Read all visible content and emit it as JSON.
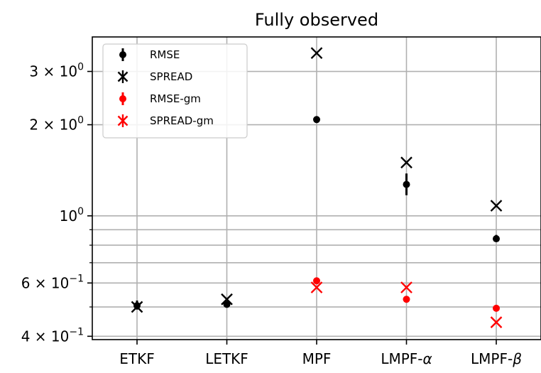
{
  "chart_data": {
    "type": "scatter",
    "title": "Fully observed",
    "xlabel": "",
    "ylabel": "",
    "y_scale": "log",
    "ylim": [
      0.39,
      3.9
    ],
    "grid": true,
    "legend_position": "top-left",
    "categories": [
      "ETKF",
      "LETKF",
      "MPF",
      "LMPF-α",
      "LMPF-β"
    ],
    "category_tex": [
      {
        "base": "ETKF",
        "symbol": ""
      },
      {
        "base": "LETKF",
        "symbol": ""
      },
      {
        "base": "MPF",
        "symbol": ""
      },
      {
        "base": "LMPF-",
        "symbol": "α"
      },
      {
        "base": "LMPF-",
        "symbol": "β"
      }
    ],
    "y_ticks": [
      {
        "value": 0.4,
        "mant": "4",
        "exp": "−1"
      },
      {
        "value": 0.6,
        "mant": "6",
        "exp": "−1"
      },
      {
        "value": 1.0,
        "mant": "",
        "exp": "0"
      },
      {
        "value": 2.0,
        "mant": "2",
        "exp": "0"
      },
      {
        "value": 3.0,
        "mant": "3",
        "exp": "0"
      }
    ],
    "y_minor_ticks": [
      0.5,
      0.7,
      0.8,
      0.9
    ],
    "series": [
      {
        "name": "RMSE",
        "marker": "dot",
        "color": "#000000",
        "values": [
          0.505,
          0.51,
          2.08,
          1.27,
          0.84
        ],
        "err_low": [
          0.49,
          null,
          null,
          1.17,
          0.82
        ],
        "err_high": [
          0.525,
          null,
          null,
          1.38,
          0.865
        ]
      },
      {
        "name": "SPREAD",
        "marker": "x",
        "color": "#000000",
        "values": [
          0.5,
          0.53,
          3.45,
          1.5,
          1.08
        ],
        "err_low": [
          null,
          null,
          null,
          null,
          null
        ],
        "err_high": [
          null,
          null,
          null,
          null,
          null
        ]
      },
      {
        "name": "RMSE-gm",
        "marker": "dot",
        "color": "#ff0000",
        "values": [
          null,
          null,
          0.61,
          0.53,
          0.495
        ],
        "err_low": [
          null,
          null,
          null,
          null,
          null
        ],
        "err_high": [
          null,
          null,
          null,
          null,
          null
        ]
      },
      {
        "name": "SPREAD-gm",
        "marker": "x",
        "color": "#ff0000",
        "values": [
          null,
          null,
          0.58,
          0.58,
          0.445
        ],
        "err_low": [
          null,
          null,
          null,
          null,
          null
        ],
        "err_high": [
          null,
          null,
          null,
          null,
          null
        ]
      }
    ]
  }
}
